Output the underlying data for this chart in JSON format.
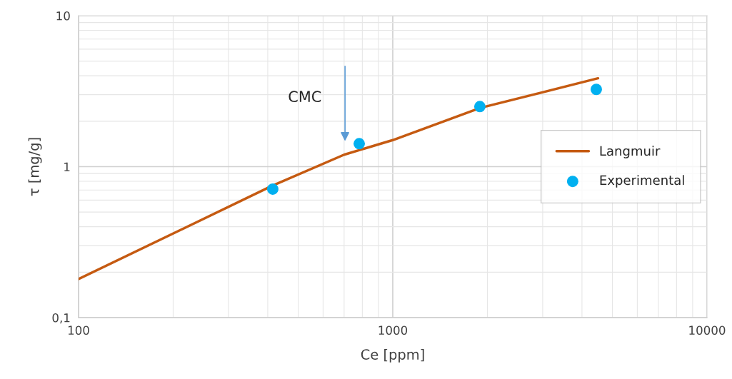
{
  "chart_data": {
    "type": "line",
    "xlabel": "Ce [ppm]",
    "ylabel": "τ [mg/g]",
    "log": "xy",
    "grid": true,
    "legend": "center right",
    "xlim": [
      100,
      10000
    ],
    "xticks": [
      100,
      1000,
      10000
    ],
    "ylim": [
      0.1,
      10
    ],
    "yticks": [
      {
        "value": 0.1,
        "label": "0,1"
      },
      1,
      10
    ],
    "series": [
      {
        "name": "Langmuir",
        "color": "#c55a11",
        "marker": "none",
        "line_style": "solid",
        "x": [
          100,
          415,
          700,
          1000,
          1900,
          4500
        ],
        "values": [
          0.18,
          0.75,
          1.2,
          1.5,
          2.45,
          3.85
        ]
      },
      {
        "name": "Experimental",
        "type": "scatter",
        "color": "#00b0f0",
        "marker": "circle",
        "x": [
          415,
          782,
          1893,
          4443
        ],
        "values": [
          0.71,
          1.42,
          2.5,
          3.25
        ]
      }
    ],
    "annotations": [
      "CMC"
    ]
  }
}
